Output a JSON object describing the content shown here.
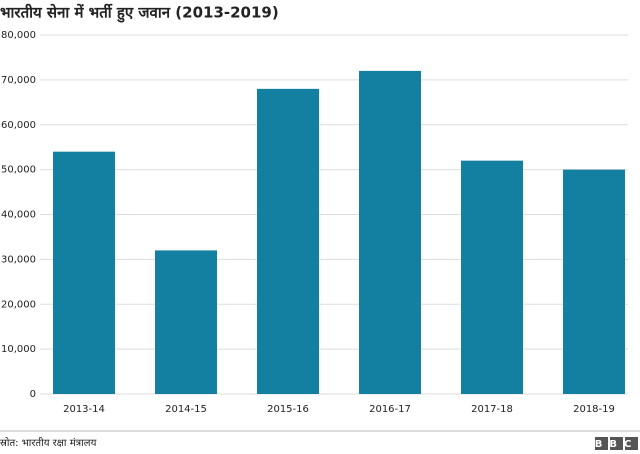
{
  "chart_data": {
    "type": "bar",
    "title": "भारतीय सेना में भर्ती हुए जवान (2013-2019)",
    "categories": [
      "2013-14",
      "2014-15",
      "2015-16",
      "2016-17",
      "2017-18",
      "2018-19"
    ],
    "values": [
      54000,
      32000,
      68000,
      72000,
      52000,
      50000
    ],
    "color": "#1380a1",
    "ylim": [
      0,
      80000
    ],
    "yticks": [
      0,
      {
        "value": 10000,
        "label": "10,000"
      },
      {
        "value": 20000,
        "label": "20,000"
      },
      {
        "value": 30000,
        "label": "30,000"
      },
      {
        "value": 40000,
        "label": "40,000"
      },
      {
        "value": 50000,
        "label": "50,000"
      },
      {
        "value": 60000,
        "label": "60,000"
      },
      {
        "value": 70000,
        "label": "70,000"
      },
      {
        "value": 80000,
        "label": "80,000"
      }
    ],
    "grid": true
  },
  "footer": {
    "source": "स्रोत: भारतीय रक्षा मंत्रालय",
    "logo": "BBC"
  }
}
